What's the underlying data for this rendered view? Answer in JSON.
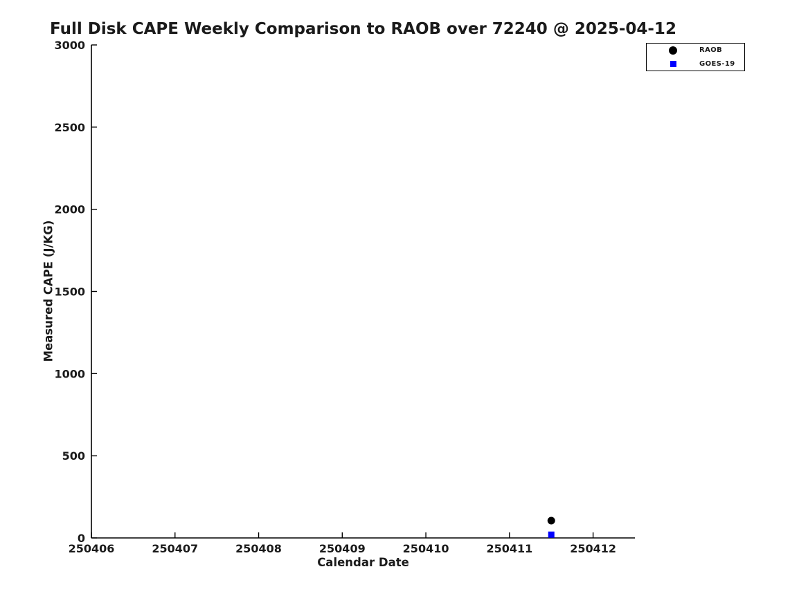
{
  "figure": {
    "background": "#ffffff",
    "text_color": "#1a1a1a",
    "axis_color": "#000000"
  },
  "chart_data": {
    "type": "scatter",
    "title": "Full Disk CAPE Weekly Comparison to RAOB over 72240 @ 2025-04-12",
    "xlabel": "Calendar Date",
    "ylabel": "Measured CAPE (J/KG)",
    "xlim": [
      250406,
      250412.5
    ],
    "ylim": [
      0,
      3000
    ],
    "xticks": [
      250406,
      250407,
      250408,
      250409,
      250410,
      250411,
      250412
    ],
    "xtick_labels": [
      "250406",
      "250407",
      "250408",
      "250409",
      "250410",
      "250411",
      "250412"
    ],
    "yticks": [
      0,
      500,
      1000,
      1500,
      2000,
      2500,
      3000
    ],
    "ytick_labels": [
      "0",
      "500",
      "1000",
      "1500",
      "2000",
      "2500",
      "3000"
    ],
    "grid": false,
    "legend_position": "top-right-outside",
    "series": [
      {
        "name": "RAOB",
        "marker": "circle",
        "color": "#000000",
        "points": [
          {
            "x": 250411.5,
            "y": 105
          }
        ]
      },
      {
        "name": "GOES-19",
        "marker": "square",
        "color": "#0000ff",
        "points": [
          {
            "x": 250411.5,
            "y": 20
          }
        ]
      }
    ]
  }
}
